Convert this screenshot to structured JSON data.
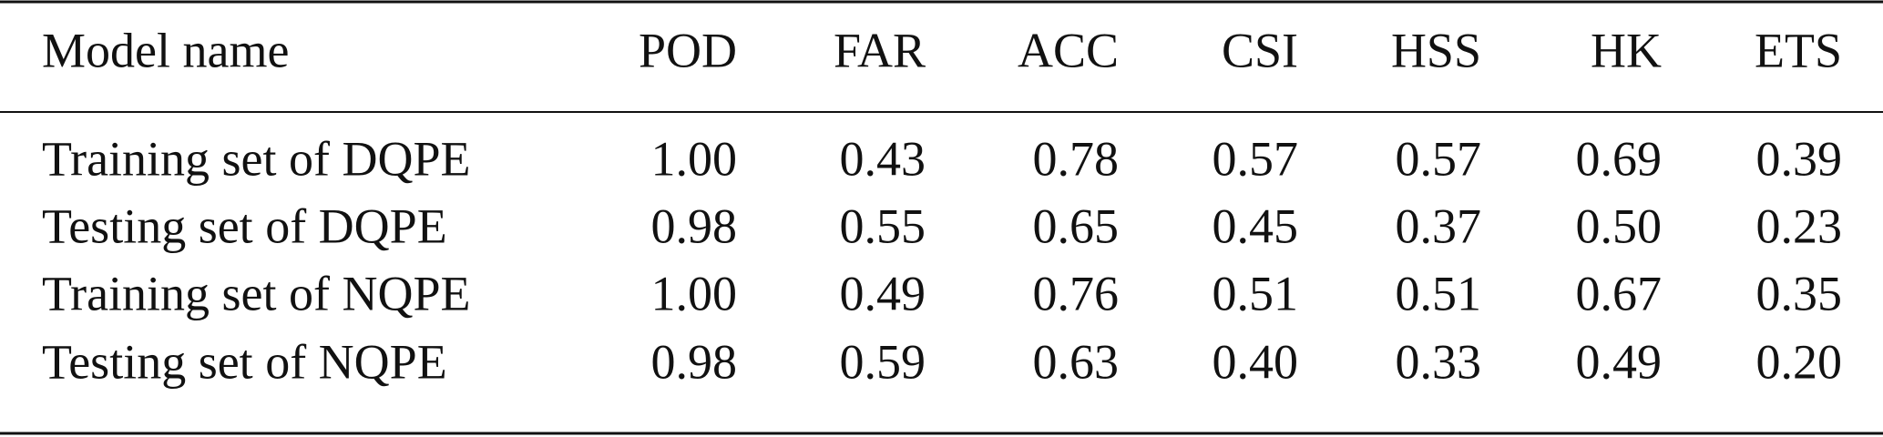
{
  "table": {
    "header": [
      "Model name",
      "POD",
      "FAR",
      "ACC",
      "CSI",
      "HSS",
      "HK",
      "ETS"
    ],
    "rows": [
      [
        "Training set of DQPE",
        "1.00",
        "0.43",
        "0.78",
        "0.57",
        "0.57",
        "0.69",
        "0.39"
      ],
      [
        "Testing set of DQPE",
        "0.98",
        "0.55",
        "0.65",
        "0.45",
        "0.37",
        "0.50",
        "0.23"
      ],
      [
        "Training set of NQPE",
        "1.00",
        "0.49",
        "0.76",
        "0.51",
        "0.51",
        "0.67",
        "0.35"
      ],
      [
        "Testing set of NQPE",
        "0.98",
        "0.59",
        "0.63",
        "0.40",
        "0.33",
        "0.49",
        "0.20"
      ]
    ]
  }
}
